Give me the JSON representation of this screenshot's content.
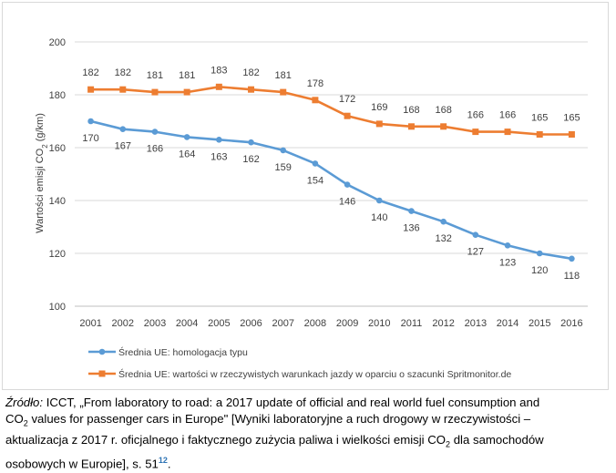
{
  "chart_data": {
    "type": "line",
    "title": "",
    "ylabel_parts": [
      "Wartości emisji CO",
      "2",
      " (g/km)"
    ],
    "ylim": [
      100,
      200
    ],
    "yticks": [
      100,
      120,
      140,
      160,
      180,
      200
    ],
    "categories": [
      "2001",
      "2002",
      "2003",
      "2004",
      "2005",
      "2006",
      "2007",
      "2008",
      "2009",
      "2010",
      "2011",
      "2012",
      "2013",
      "2014",
      "2015",
      "2016"
    ],
    "series": [
      {
        "name": "Średnia UE: homologacja typu",
        "color": "#5b9bd5",
        "marker": "circle",
        "values": [
          170,
          167,
          166,
          164,
          163,
          162,
          159,
          154,
          146,
          140,
          136,
          132,
          127,
          123,
          120,
          118
        ],
        "labels": [
          "170",
          "167",
          "166",
          "164",
          "163",
          "162",
          "159",
          "154",
          "146",
          "140",
          "136",
          "132",
          "127",
          "123",
          "120",
          "118"
        ]
      },
      {
        "name": "Średnia UE: wartości w rzeczywistych warunkach jazdy w oparciu o szacunki Spritmonitor.de",
        "color": "#ed7d31",
        "marker": "square",
        "values": [
          182,
          182,
          181,
          181,
          183,
          182,
          181,
          178,
          172,
          169,
          168,
          168,
          166,
          166,
          165,
          165
        ],
        "labels": [
          "182",
          "182",
          "181",
          "181",
          "183",
          "182",
          "181",
          "178",
          "172",
          "169",
          "168",
          "168",
          "166",
          "166",
          "165",
          "165"
        ]
      }
    ],
    "legend_position": "bottom-left"
  },
  "caption": {
    "source_label": "Źródło:",
    "line1": " ICCT, „From laboratory to road: a 2017 update of official and real world fuel consumption and",
    "line2_a": "CO",
    "line2_sub": "2",
    "line2_b": " values for passenger cars in Europe\" [Wyniki laboratoryjne a ruch drogowy w rzeczywistości –",
    "line3_a": "aktualizacja z 2017 r. oficjalnego i faktycznego zużycia paliwa i wielkości emisji CO",
    "line3_sub": "2",
    "line3_b": " dla samochodów",
    "line4": "osobowych w Europie], s. 51",
    "footnote": "12",
    "line4_end": "."
  }
}
